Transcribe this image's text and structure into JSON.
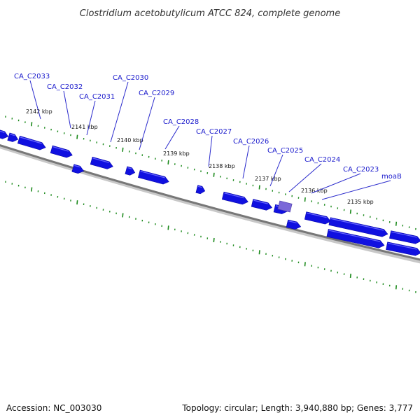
{
  "title": "Clostridium acetobutylicum ATCC 824, complete genome",
  "footer": {
    "accession": "Accession: NC_003030",
    "summary": "Topology: circular; Length: 3,940,880 bp; Genes: 3,777"
  },
  "colors": {
    "gene": "#1010e0",
    "gene_highlight": "#7a68d8",
    "gene_label": "#1a1acc",
    "tick": "#1c8a1c",
    "backbone": "#777777",
    "leader": "#2a2acc"
  },
  "kbp_labels": [
    "2142 kbp",
    "2141 kbp",
    "2140 kbp",
    "2139 kbp",
    "2138 kbp",
    "2137 kbp",
    "2136 kbp",
    "2135 kbp"
  ],
  "genes": [
    {
      "label": "CA_C2033",
      "strand": "forward",
      "highlight": false
    },
    {
      "label": "CA_C2032",
      "strand": "forward",
      "highlight": false
    },
    {
      "label": "CA_C2031",
      "strand": "forward",
      "highlight": false
    },
    {
      "label": "CA_C2030",
      "strand": "forward",
      "highlight": false
    },
    {
      "label": "CA_C2029",
      "strand": "forward",
      "highlight": false
    },
    {
      "label": "CA_C2028",
      "strand": "forward",
      "highlight": false
    },
    {
      "label": "CA_C2027",
      "strand": "forward",
      "highlight": false
    },
    {
      "label": "CA_C2026",
      "strand": "forward",
      "highlight": false
    },
    {
      "label": "CA_C2025",
      "strand": "forward",
      "highlight": true
    },
    {
      "label": "CA_C2024",
      "strand": "forward",
      "highlight": false
    },
    {
      "label": "CA_C2023",
      "strand": "forward",
      "highlight": false
    },
    {
      "label": "moaB",
      "strand": "forward",
      "highlight": false
    }
  ]
}
